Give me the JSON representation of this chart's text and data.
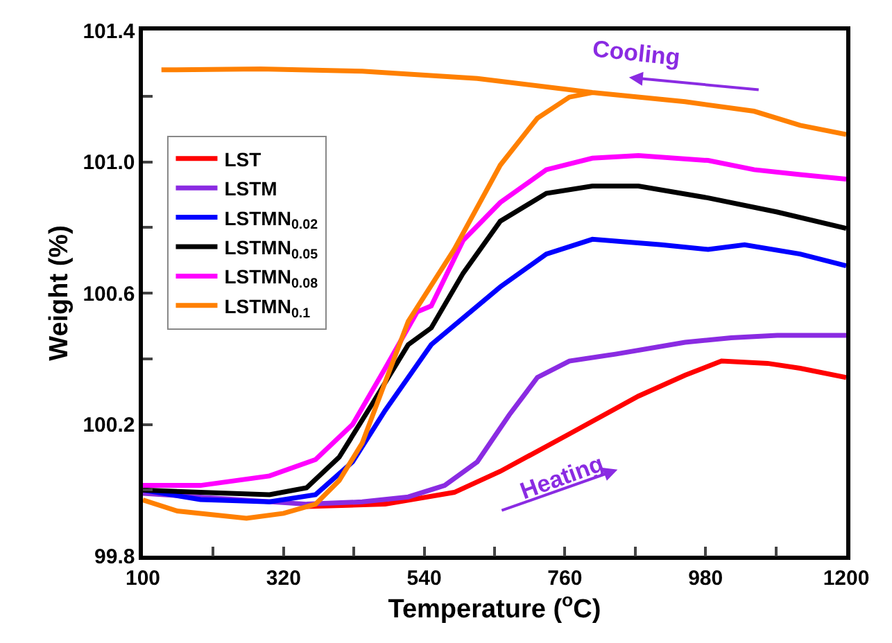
{
  "chart_data": {
    "type": "line",
    "xlabel": "Temperature ($^{o}$C)",
    "ylabel": "Weight (%)",
    "xlim": [
      100,
      1200
    ],
    "ylim": [
      99.8,
      101.4
    ],
    "xticks": [
      100,
      {
        "value": 210,
        "label": null
      },
      320,
      {
        "value": 430,
        "label": null
      },
      540,
      {
        "value": 650,
        "label": null
      },
      760,
      {
        "value": 870,
        "label": null
      },
      980,
      {
        "value": 1090,
        "label": null
      },
      1200
    ],
    "yticks": [
      99.8,
      {
        "value": 100.0,
        "label": null
      },
      100.2,
      {
        "value": 100.4,
        "label": null
      },
      100.6,
      {
        "value": 100.8,
        "label": null
      },
      {
        "value": 101.0,
        "label": "101.0"
      },
      {
        "value": 101.2,
        "label": null
      },
      101.4
    ],
    "legend": "top left",
    "marker": "none",
    "line_style": "solid",
    "series": [
      {
        "name": "LST",
        "color": "#ff0000",
        "x": [
          356,
          479,
          587,
          659,
          767,
          875,
          948,
          1005,
          1077,
          1128,
          1200
        ],
        "values": [
          99.95,
          99.957,
          99.993,
          100.057,
          100.171,
          100.286,
          100.35,
          100.393,
          100.386,
          100.371,
          100.343
        ]
      },
      {
        "name": "LSTM",
        "color": "#8a2be2",
        "x": [
          100,
          356,
          443,
          515,
          572,
          623,
          673,
          717,
          767,
          839,
          948,
          1020,
          1092,
          1200
        ],
        "values": [
          99.99,
          99.957,
          99.964,
          99.979,
          100.014,
          100.086,
          100.229,
          100.343,
          100.393,
          100.414,
          100.45,
          100.464,
          100.471,
          100.471
        ]
      },
      {
        "name": "LSTMN$_{0.02}$",
        "color": "#0000ff",
        "x": [
          100,
          190,
          298,
          370,
          428,
          479,
          551,
          659,
          731,
          803,
          911,
          984,
          1041,
          1128,
          1200
        ],
        "values": [
          100.0,
          99.971,
          99.964,
          99.986,
          100.086,
          100.243,
          100.443,
          100.619,
          100.719,
          100.764,
          100.747,
          100.733,
          100.747,
          100.719,
          100.683
        ]
      },
      {
        "name": "LSTMN$_{0.05}$",
        "color": "#000000",
        "x": [
          100,
          190,
          298,
          356,
          407,
          457,
          515,
          551,
          601,
          659,
          731,
          803,
          875,
          984,
          1092,
          1200
        ],
        "values": [
          100.0,
          99.993,
          99.986,
          100.007,
          100.1,
          100.257,
          100.443,
          100.494,
          100.661,
          100.819,
          100.904,
          100.926,
          100.926,
          100.89,
          100.847,
          100.797
        ]
      },
      {
        "name": "LSTMN$_{0.08}$",
        "color": "#ff00ff",
        "x": [
          100,
          190,
          298,
          370,
          428,
          479,
          529,
          551,
          601,
          659,
          731,
          803,
          875,
          984,
          1056,
          1128,
          1200
        ],
        "values": [
          100.014,
          100.014,
          100.043,
          100.093,
          100.2,
          100.371,
          100.543,
          100.561,
          100.761,
          100.876,
          100.976,
          101.011,
          101.019,
          101.004,
          100.976,
          100.961,
          100.947
        ]
      },
      {
        "name": "LSTMN$_{0.1}$",
        "color": "#ff8000",
        "x": [
          100,
          154,
          262,
          320,
          370,
          407,
          443,
          479,
          515,
          587,
          659,
          717,
          767,
          803,
          948,
          1056,
          1128,
          1200,
          1128,
          1056,
          948,
          803,
          623,
          443,
          284,
          129
        ],
        "values": [
          99.97,
          99.936,
          99.914,
          99.929,
          99.957,
          100.029,
          100.143,
          100.329,
          100.514,
          100.733,
          100.99,
          101.133,
          101.197,
          101.211,
          101.183,
          101.154,
          101.111,
          101.083,
          101.111,
          101.154,
          101.183,
          101.211,
          101.254,
          101.276,
          101.283,
          101.28
        ]
      }
    ],
    "annotations": [
      "Cooling",
      "Heating"
    ]
  }
}
